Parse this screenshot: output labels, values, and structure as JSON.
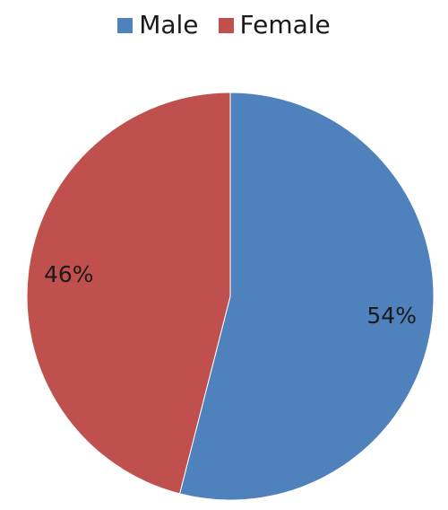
{
  "chart_data": {
    "type": "pie",
    "categories": [
      "Male",
      "Female"
    ],
    "values": [
      54,
      46
    ],
    "labels": [
      "54%",
      "46%"
    ],
    "colors": [
      "#4f81bd",
      "#c0504d"
    ],
    "legend": {
      "position": "top",
      "entries": [
        "Male",
        "Female"
      ]
    }
  }
}
